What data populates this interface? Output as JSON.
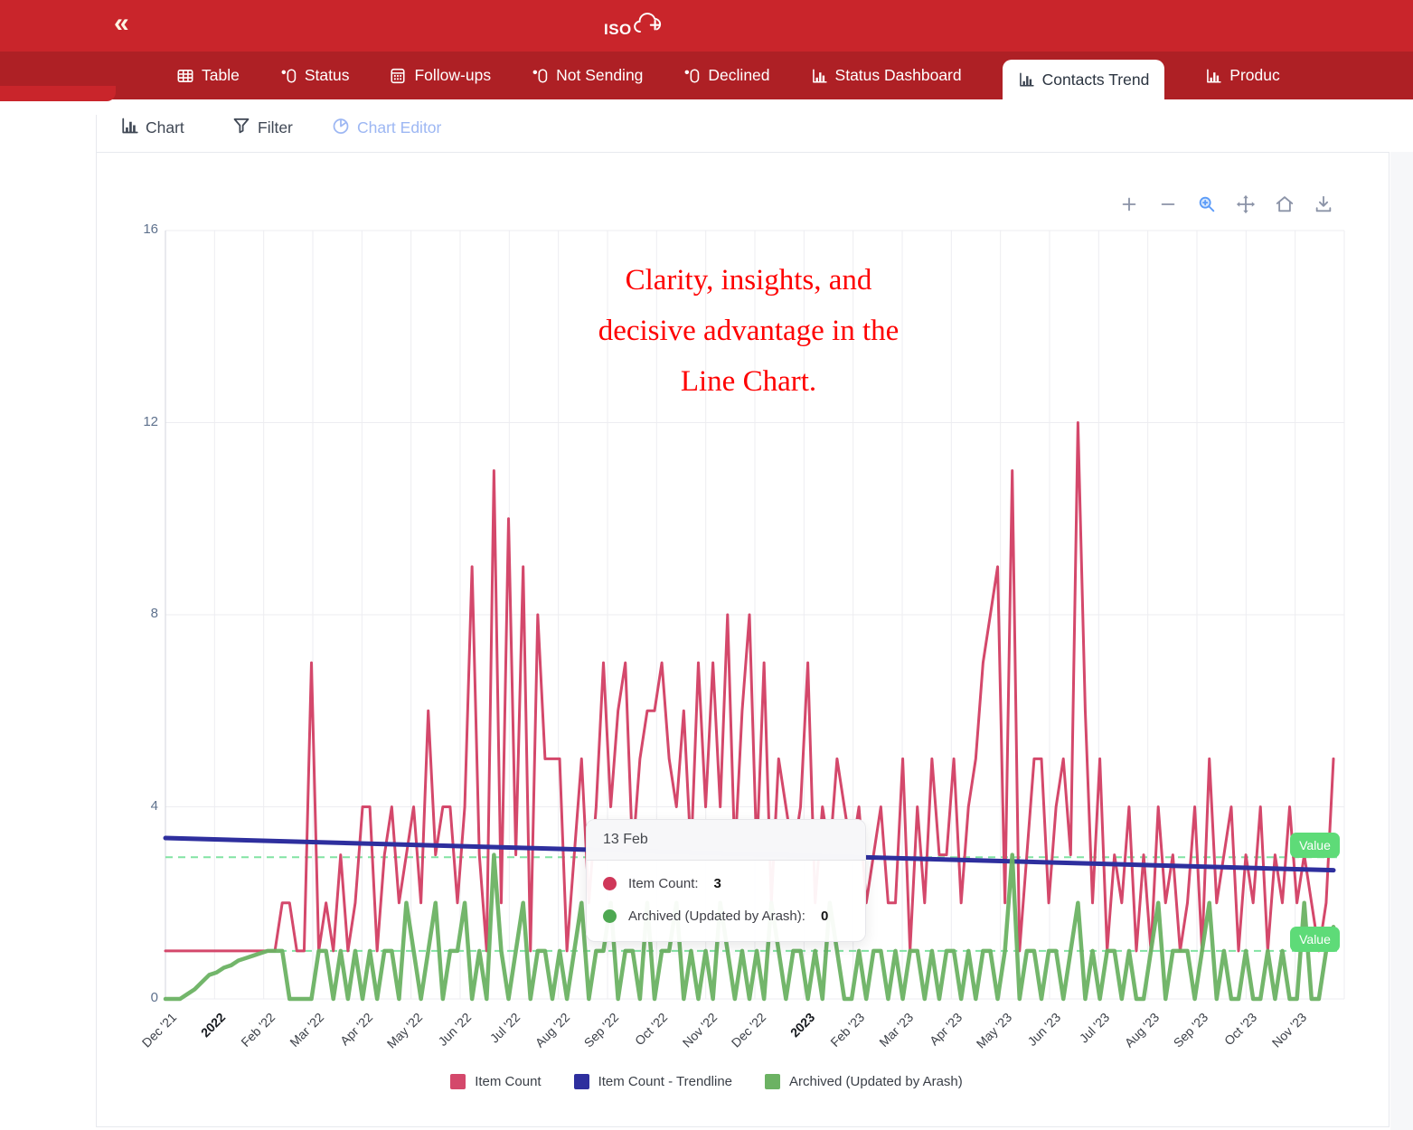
{
  "header": {
    "logo_text": "ISO",
    "logo_plus": "+"
  },
  "tab_bar": {
    "collapse_label": "«",
    "tabs": [
      {
        "label": "Table",
        "icon": "table-icon",
        "active": false
      },
      {
        "label": "Status",
        "icon": "toggle-icon",
        "active": false
      },
      {
        "label": "Follow-ups",
        "icon": "calculator-icon",
        "active": false
      },
      {
        "label": "Not Sending",
        "icon": "toggle-icon",
        "active": false
      },
      {
        "label": "Declined",
        "icon": "toggle-icon",
        "active": false
      },
      {
        "label": "Status Dashboard",
        "icon": "bar-chart-icon",
        "active": false
      },
      {
        "label": "Contacts Trend",
        "icon": "bar-chart-icon",
        "active": true
      },
      {
        "label": "Produc",
        "icon": "bar-chart-icon",
        "active": false
      }
    ]
  },
  "view_toolbar": {
    "items": [
      {
        "label": "Chart",
        "icon": "bar-chart-icon",
        "color": "#3f4754"
      },
      {
        "label": "Filter",
        "icon": "filter-icon",
        "color": "#3f4754"
      },
      {
        "label": "Chart Editor",
        "icon": "pie-chart-icon",
        "color": "#9db7f3"
      }
    ]
  },
  "modebar": {
    "buttons": [
      "zoom-in",
      "zoom-out",
      "zoom",
      "pan",
      "home",
      "download"
    ],
    "active_button": "zoom",
    "icon_color": "#8b93a7",
    "active_color": "#5b9bf8"
  },
  "annotation": {
    "lines": [
      "Clarity, insights, and",
      "decisive advantage in the",
      "Line Chart."
    ],
    "color": "#fe0000"
  },
  "tooltip": {
    "title": "13 Feb",
    "rows": [
      {
        "label": "Item Count:",
        "value": "3",
        "dot_color": "#cf3759"
      },
      {
        "label": "Archived (Updated by Arash):",
        "value": "0",
        "dot_color": "#4ea852"
      }
    ]
  },
  "colors": {
    "topbar": "#c9252b",
    "tabbar": "#ae2025",
    "active_tab_text": "#2b3440",
    "accent_red": "#fe0000",
    "badge_green": "#5edb78",
    "grid": "#ededf1",
    "axis": "#d3d6dc",
    "tick_label": "#5e718d",
    "x_label": "#3c4048"
  },
  "chart_data": {
    "type": "line",
    "title": "",
    "x_ticks": [
      "Dec '21",
      "2022",
      "Feb '22",
      "Mar '22",
      "Apr '22",
      "May '22",
      "Jun '22",
      "Jul '22",
      "Aug '22",
      "Sep '22",
      "Oct '22",
      "Nov '22",
      "Dec '22",
      "2023",
      "Feb '23",
      "Mar '23",
      "Apr '23",
      "May '23",
      "Jun '23",
      "Jul '23",
      "Aug '23",
      "Sep '23",
      "Oct '23",
      "Nov '23"
    ],
    "bold_x_ticks": [
      "2022",
      "2023"
    ],
    "y_ticks": [
      0,
      4,
      8,
      12,
      16
    ],
    "ylim": [
      0,
      16
    ],
    "grid": true,
    "legend_position": "bottom",
    "series": [
      {
        "name": "Item Count",
        "color": "#d4486b",
        "width": 3,
        "values": [
          1,
          1,
          1,
          1,
          1,
          1,
          1,
          1,
          1,
          1,
          1,
          1,
          1,
          1,
          1,
          1,
          2,
          2,
          1,
          1,
          7,
          1,
          2,
          1,
          3,
          1,
          2,
          4,
          4,
          1,
          3,
          4,
          2,
          3,
          4,
          2,
          6,
          3,
          4,
          4,
          2,
          4,
          9,
          3,
          1,
          11,
          2,
          10,
          3,
          9,
          1,
          8,
          5,
          5,
          5,
          1,
          3,
          5,
          2,
          4,
          7,
          4,
          6,
          7,
          3,
          5,
          6,
          6,
          7,
          5,
          4,
          6,
          3,
          7,
          4,
          7,
          4,
          8,
          3,
          6,
          8,
          3,
          7,
          2,
          5,
          4,
          3,
          4,
          7,
          2,
          4,
          3,
          5,
          4,
          3,
          4,
          2,
          3,
          4,
          2,
          2,
          5,
          1,
          4,
          2,
          5,
          3,
          3,
          5,
          2,
          4,
          5,
          7,
          8,
          9,
          2,
          11,
          1,
          3,
          5,
          5,
          2,
          4,
          5,
          3,
          12,
          6,
          2,
          5,
          1,
          3,
          2,
          4,
          1,
          3,
          1,
          4,
          2,
          3,
          1,
          2,
          4,
          1,
          5,
          2,
          3,
          4,
          1,
          3,
          2,
          4,
          1,
          3,
          2,
          4,
          2,
          3,
          2,
          1,
          2,
          5
        ]
      },
      {
        "name": "Item Count - Trendline",
        "color": "#2e2f9e",
        "width": 5,
        "trend_start": 3.35,
        "trend_end": 2.68
      },
      {
        "name": "Archived (Updated by Arash)",
        "color": "#6cb263",
        "width": 4.5,
        "values": [
          0,
          0,
          0,
          0.1,
          0.2,
          0.35,
          0.5,
          0.55,
          0.65,
          0.7,
          0.8,
          0.85,
          0.9,
          0.95,
          1,
          1,
          1,
          0,
          0,
          0,
          0,
          1,
          1,
          0,
          1,
          0,
          1,
          0,
          1,
          0,
          1,
          1,
          0,
          2,
          1,
          0,
          1,
          2,
          0,
          1,
          1,
          2,
          0,
          1,
          0,
          3,
          1,
          0,
          1,
          2,
          0,
          1,
          1,
          0,
          1,
          0,
          1,
          2,
          0,
          1,
          1,
          2,
          0,
          1,
          1,
          0,
          2,
          0,
          1,
          1,
          2,
          0,
          1,
          0,
          1,
          0,
          2,
          1,
          0,
          1,
          0,
          1,
          0,
          2,
          1,
          0,
          1,
          1,
          0,
          1,
          0,
          2,
          1,
          0,
          0,
          1,
          0,
          1,
          1,
          0,
          1,
          0,
          1,
          1,
          0,
          1,
          0,
          1,
          1,
          0,
          1,
          0,
          1,
          1,
          0,
          1,
          3,
          0,
          1,
          1,
          0,
          1,
          1,
          0,
          1,
          2,
          0,
          1,
          0,
          1,
          1,
          0,
          1,
          0,
          0,
          1,
          2,
          0,
          1,
          1,
          1,
          0,
          1,
          2,
          0,
          1,
          0,
          0,
          1,
          0,
          0,
          1,
          0,
          1,
          0,
          0,
          2,
          0,
          0,
          1,
          1.5
        ]
      }
    ],
    "reference_lines": [
      {
        "value": 2.95,
        "label": "Value",
        "color": "#82e3a3"
      },
      {
        "value": 1.0,
        "label": "Value",
        "color": "#82e3a3"
      }
    ]
  }
}
